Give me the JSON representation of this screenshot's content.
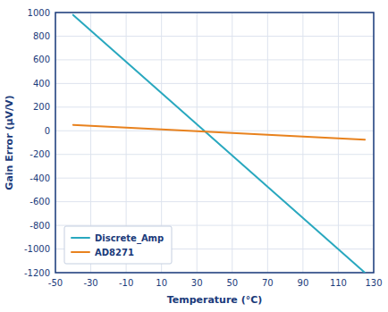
{
  "chart_data": {
    "type": "line",
    "xlabel": "Temperature (°C)",
    "ylabel": "Gain Error (μV/V)",
    "x": [
      -40,
      125
    ],
    "series": [
      {
        "name": "Discrete_Amp",
        "color": "#29a8bf",
        "values": [
          980,
          -1200
        ]
      },
      {
        "name": "AD8271",
        "color": "#e8821e",
        "values": [
          50,
          -75
        ]
      }
    ],
    "xlim": [
      -50,
      130
    ],
    "ylim": [
      -1200,
      1000
    ],
    "xticks": [
      -50,
      -30,
      -10,
      10,
      30,
      50,
      70,
      90,
      110,
      130
    ],
    "yticks": [
      -1200,
      -1000,
      -800,
      -600,
      -400,
      -200,
      0,
      200,
      400,
      600,
      800,
      1000
    ],
    "grid": true,
    "legend": "lower left"
  }
}
